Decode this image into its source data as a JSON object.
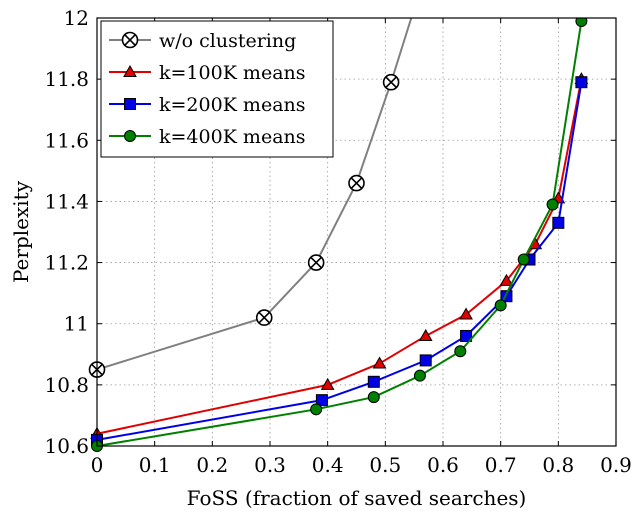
{
  "chart_data": {
    "type": "line",
    "xlabel": "FoSS (fraction of saved searches)",
    "ylabel": "Perplexity",
    "xlim": [
      0,
      0.9
    ],
    "ylim": [
      10.6,
      12
    ],
    "xticks": [
      0,
      0.1,
      0.2,
      0.3,
      0.4,
      0.5,
      0.6,
      0.7,
      0.8,
      0.9
    ],
    "xtick_labels": [
      "0",
      "0.1",
      "0.2",
      "0.3",
      "0.4",
      "0.5",
      "0.6",
      "0.7",
      "0.8",
      "0.9"
    ],
    "yticks": [
      10.6,
      10.8,
      11,
      11.2,
      11.4,
      11.6,
      11.8,
      12
    ],
    "ytick_labels": [
      "10.6",
      "10.8",
      "11",
      "11.2",
      "11.4",
      "11.6",
      "11.8",
      "12"
    ],
    "grid": true,
    "grid_style": "dotted",
    "legend_position": "top-left",
    "series": [
      {
        "name": "w/o clustering",
        "color": "#808080",
        "marker": "circle-x",
        "x": [
          0,
          0.29,
          0.38,
          0.45,
          0.51,
          0.545
        ],
        "y": [
          10.85,
          11.02,
          11.2,
          11.46,
          11.79,
          12.0
        ],
        "marker_count": 5
      },
      {
        "name": "k=100K means",
        "color": "#e00000",
        "marker": "triangle",
        "x": [
          0,
          0.4,
          0.49,
          0.57,
          0.64,
          0.71,
          0.76,
          0.8,
          0.84
        ],
        "y": [
          10.64,
          10.8,
          10.87,
          10.96,
          11.03,
          11.14,
          11.26,
          11.41,
          11.8
        ]
      },
      {
        "name": "k=200K means",
        "color": "#0000e6",
        "marker": "square",
        "x": [
          0,
          0.39,
          0.48,
          0.57,
          0.64,
          0.71,
          0.75,
          0.8,
          0.84
        ],
        "y": [
          10.62,
          10.75,
          10.81,
          10.88,
          10.96,
          11.09,
          11.21,
          11.33,
          11.79
        ]
      },
      {
        "name": "k=400K means",
        "color": "#008000",
        "marker": "circle",
        "x": [
          0,
          0.38,
          0.48,
          0.56,
          0.63,
          0.7,
          0.74,
          0.79,
          0.84
        ],
        "y": [
          10.6,
          10.72,
          10.76,
          10.83,
          10.91,
          11.06,
          11.21,
          11.39,
          11.99
        ]
      }
    ]
  }
}
